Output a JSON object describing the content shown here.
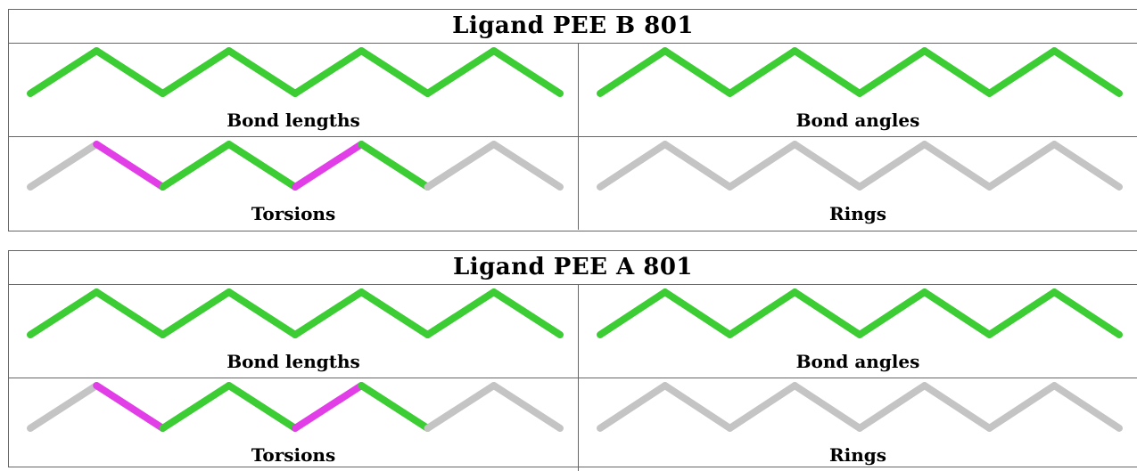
{
  "colors": {
    "pass": "#3ccc33",
    "outlier": "#e23ee8",
    "na": "#c4c4c4"
  },
  "panels": [
    {
      "id": "b",
      "title": "Ligand PEE B 801",
      "cells": [
        {
          "caption": "Bond lengths",
          "bonds": [
            "pass",
            "pass",
            "pass",
            "pass",
            "pass",
            "pass",
            "pass",
            "pass"
          ]
        },
        {
          "caption": "Bond angles",
          "bonds": [
            "pass",
            "pass",
            "pass",
            "pass",
            "pass",
            "pass",
            "pass",
            "pass"
          ]
        },
        {
          "caption": "Torsions",
          "bonds": [
            "na",
            "outlier",
            "pass",
            "pass",
            "outlier",
            "pass",
            "na",
            "na"
          ]
        },
        {
          "caption": "Rings",
          "bonds": [
            "na",
            "na",
            "na",
            "na",
            "na",
            "na",
            "na",
            "na"
          ]
        }
      ]
    },
    {
      "id": "a",
      "title": "Ligand PEE A 801",
      "cells": [
        {
          "caption": "Bond lengths",
          "bonds": [
            "pass",
            "pass",
            "pass",
            "pass",
            "pass",
            "pass",
            "pass",
            "pass"
          ]
        },
        {
          "caption": "Bond angles",
          "bonds": [
            "pass",
            "pass",
            "pass",
            "pass",
            "pass",
            "pass",
            "pass",
            "pass"
          ]
        },
        {
          "caption": "Torsions",
          "bonds": [
            "na",
            "outlier",
            "pass",
            "pass",
            "outlier",
            "pass",
            "na",
            "na"
          ]
        },
        {
          "caption": "Rings",
          "bonds": [
            "na",
            "na",
            "na",
            "na",
            "na",
            "na",
            "na",
            "na"
          ]
        }
      ]
    }
  ]
}
